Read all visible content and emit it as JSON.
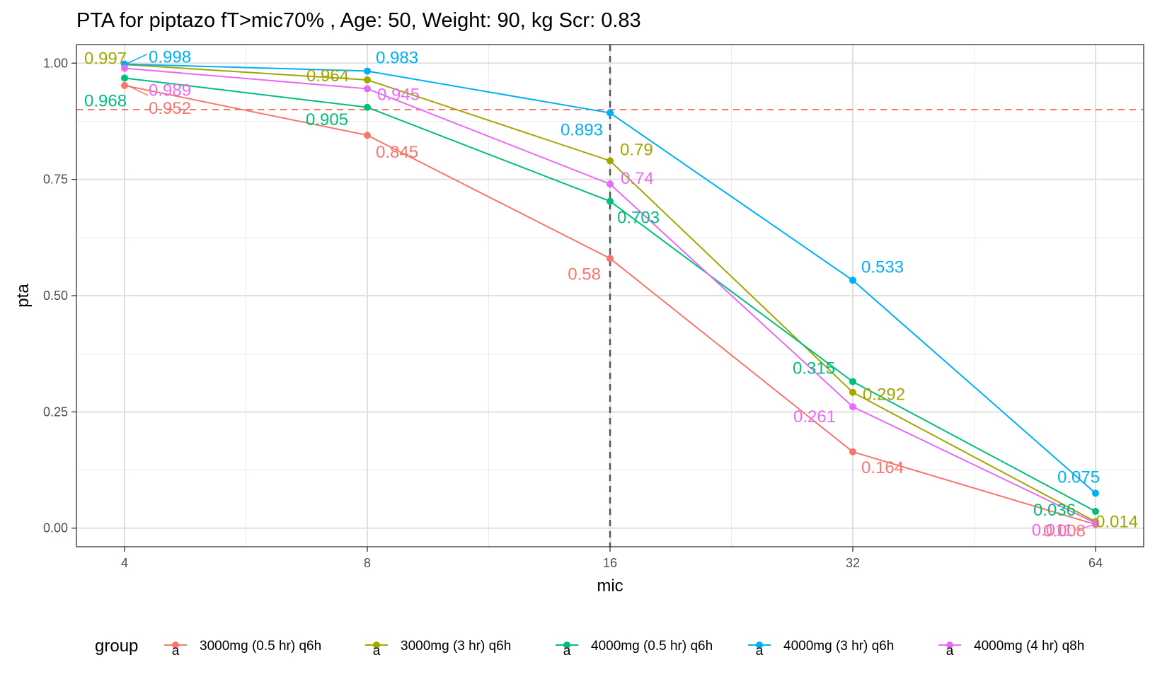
{
  "chart_data": {
    "type": "line",
    "title": "PTA for piptazo fT>mic70% , Age: 50, Weight: 90, kg Scr: 0.83",
    "xlabel": "mic",
    "ylabel": "pta",
    "x": [
      4,
      8,
      16,
      32,
      64
    ],
    "x_scale": "log2",
    "x_tick_labels": [
      "4",
      "8",
      "16",
      "32",
      "64"
    ],
    "ylim": [
      -0.04,
      1.04
    ],
    "y_ticks": [
      0,
      0.25,
      0.5,
      0.75,
      1.0
    ],
    "y_tick_labels": [
      "0.00",
      "0.25",
      "0.50",
      "0.75",
      "1.00"
    ],
    "grid": true,
    "legend_title": "group",
    "legend_position": "bottom",
    "legend_glyph": "a",
    "reference_lines": {
      "horizontal": {
        "value": 0.9,
        "color": "#F8766D",
        "style": "dashed"
      },
      "vertical": {
        "value": 16,
        "color": "#555555",
        "style": "dashed"
      }
    },
    "series": [
      {
        "name": "3000mg (0.5 hr) q6h",
        "color": "#F8766D",
        "values": [
          0.952,
          0.845,
          0.58,
          0.164,
          0.008
        ],
        "labels": [
          "0.952",
          "0.845",
          "0.58",
          "0.164",
          "0.008"
        ]
      },
      {
        "name": "3000mg (3 hr) q6h",
        "color": "#A3A500",
        "values": [
          0.997,
          0.964,
          0.79,
          0.292,
          0.014
        ],
        "labels": [
          "0.997",
          "0.964",
          "0.79",
          "0.292",
          "0.014"
        ]
      },
      {
        "name": "4000mg (0.5 hr) q6h",
        "color": "#00BF7D",
        "values": [
          0.968,
          0.905,
          0.703,
          0.315,
          0.036
        ],
        "labels": [
          "0.968",
          "0.905",
          "0.703",
          "0.315",
          "0.036"
        ]
      },
      {
        "name": "4000mg (3 hr) q6h",
        "color": "#00B0F6",
        "values": [
          0.998,
          0.983,
          0.893,
          0.533,
          0.075
        ],
        "labels": [
          "0.998",
          "0.983",
          "0.893",
          "0.533",
          "0.075"
        ]
      },
      {
        "name": "4000mg (4 hr) q8h",
        "color": "#E76BF3",
        "values": [
          0.989,
          0.945,
          0.74,
          0.261,
          0.011
        ],
        "labels": [
          "0.989",
          "0.945",
          "0.74",
          "0.261",
          "0.011"
        ]
      }
    ]
  }
}
